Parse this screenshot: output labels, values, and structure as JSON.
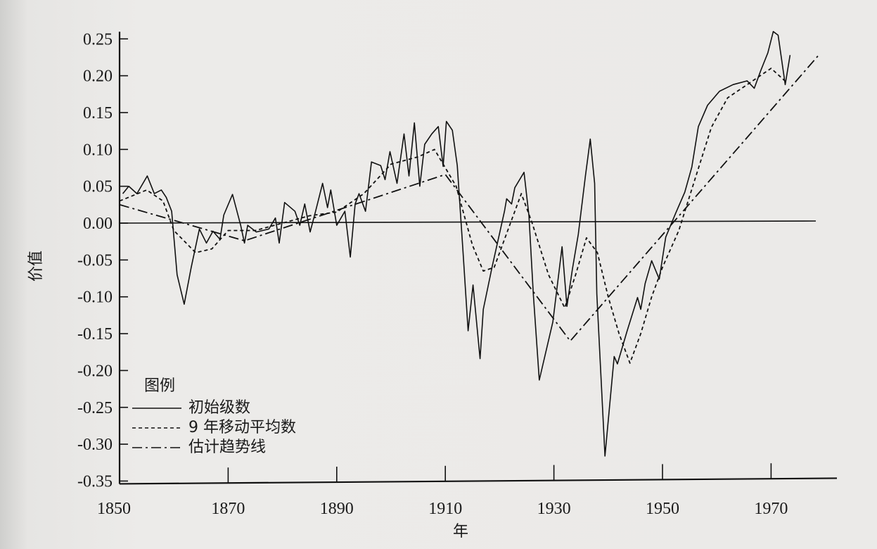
{
  "chart_data": {
    "type": "line",
    "title": "",
    "xlabel": "年",
    "ylabel": "价值",
    "xlim": [
      1850,
      1980
    ],
    "ylim": [
      -0.35,
      0.25
    ],
    "x_ticks": [
      "1850",
      "1870",
      "1890",
      "1910",
      "1930",
      "1950",
      "1970"
    ],
    "y_ticks": [
      "0.25",
      "0.20",
      "0.15",
      "0.10",
      "0.05",
      "0.00",
      "-0.05",
      "-0.10",
      "-0.15",
      "-0.20",
      "-0.25",
      "-0.30",
      "-0.35"
    ],
    "grid": false,
    "zero_line": true,
    "legend": {
      "title": "图例",
      "placement": "bottom-left",
      "entries": [
        "初始级数",
        "9 年移动平均数",
        "估计趋势线"
      ]
    },
    "series": [
      {
        "name": "初始级数",
        "style": "solid",
        "points": [
          [
            1850.6,
            0.04
          ],
          [
            1851.7,
            0.05
          ],
          [
            1853.2,
            0.04
          ],
          [
            1855.1,
            0.064
          ],
          [
            1856.4,
            0.04
          ],
          [
            1857.7,
            0.045
          ],
          [
            1858.6,
            0.035
          ],
          [
            1859.6,
            0.016
          ],
          [
            1860.6,
            -0.07
          ],
          [
            1861.9,
            -0.11
          ],
          [
            1863.2,
            -0.06
          ],
          [
            1864.7,
            -0.008
          ],
          [
            1866.0,
            -0.027
          ],
          [
            1867.2,
            -0.011
          ],
          [
            1868.5,
            -0.022
          ],
          [
            1869.2,
            0.011
          ],
          [
            1870.8,
            0.039
          ],
          [
            1872.3,
            -0.003
          ],
          [
            1873.0,
            -0.027
          ],
          [
            1873.6,
            -0.003
          ],
          [
            1875.2,
            -0.012
          ],
          [
            1877.5,
            -0.008
          ],
          [
            1878.7,
            0.007
          ],
          [
            1879.4,
            -0.027
          ],
          [
            1880.4,
            0.028
          ],
          [
            1882.3,
            0.016
          ],
          [
            1883.2,
            -0.003
          ],
          [
            1884.1,
            0.026
          ],
          [
            1885.1,
            -0.012
          ],
          [
            1886.1,
            0.016
          ],
          [
            1887.4,
            0.054
          ],
          [
            1888.3,
            0.021
          ],
          [
            1888.9,
            0.045
          ],
          [
            1890.0,
            -0.003
          ],
          [
            1891.5,
            0.016
          ],
          [
            1892.5,
            -0.046
          ],
          [
            1893.4,
            0.026
          ],
          [
            1894.1,
            0.04
          ],
          [
            1895.3,
            0.016
          ],
          [
            1896.4,
            0.083
          ],
          [
            1898.1,
            0.078
          ],
          [
            1898.9,
            0.059
          ],
          [
            1899.8,
            0.097
          ],
          [
            1901.1,
            0.054
          ],
          [
            1902.4,
            0.121
          ],
          [
            1903.3,
            0.064
          ],
          [
            1904.3,
            0.136
          ],
          [
            1905.3,
            0.05
          ],
          [
            1906.2,
            0.107
          ],
          [
            1907.5,
            0.121
          ],
          [
            1908.7,
            0.131
          ],
          [
            1909.6,
            0.077
          ],
          [
            1910.2,
            0.138
          ],
          [
            1911.3,
            0.126
          ],
          [
            1912.2,
            0.078
          ],
          [
            1913.2,
            -0.032
          ],
          [
            1914.2,
            -0.146
          ],
          [
            1915.1,
            -0.084
          ],
          [
            1916.4,
            -0.184
          ],
          [
            1917.0,
            -0.117
          ],
          [
            1918.6,
            -0.06
          ],
          [
            1920.9,
            0.016
          ],
          [
            1921.3,
            0.033
          ],
          [
            1922.2,
            0.026
          ],
          [
            1922.8,
            0.048
          ],
          [
            1924.5,
            0.069
          ],
          [
            1925.4,
            0.01
          ],
          [
            1926.2,
            -0.096
          ],
          [
            1927.3,
            -0.213
          ],
          [
            1929.8,
            -0.134
          ],
          [
            1931.5,
            -0.032
          ],
          [
            1932.4,
            -0.113
          ],
          [
            1933.4,
            -0.063
          ],
          [
            1934.5,
            -0.015
          ],
          [
            1935.8,
            0.064
          ],
          [
            1936.7,
            0.114
          ],
          [
            1937.5,
            0.054
          ],
          [
            1937.9,
            -0.096
          ],
          [
            1939.4,
            -0.316
          ],
          [
            1941.1,
            -0.181
          ],
          [
            1941.7,
            -0.191
          ],
          [
            1943.5,
            -0.146
          ],
          [
            1944.3,
            -0.127
          ],
          [
            1945.4,
            -0.101
          ],
          [
            1946.0,
            -0.117
          ],
          [
            1946.8,
            -0.082
          ],
          [
            1948.0,
            -0.051
          ],
          [
            1949.4,
            -0.076
          ],
          [
            1950.6,
            -0.019
          ],
          [
            1952.4,
            0.013
          ],
          [
            1954.1,
            0.042
          ],
          [
            1955.4,
            0.076
          ],
          [
            1956.6,
            0.131
          ],
          [
            1958.3,
            0.16
          ],
          [
            1960.5,
            0.179
          ],
          [
            1963.0,
            0.188
          ],
          [
            1965.6,
            0.193
          ],
          [
            1966.9,
            0.183
          ],
          [
            1968.1,
            0.207
          ],
          [
            1969.4,
            0.231
          ],
          [
            1970.4,
            0.26
          ],
          [
            1971.3,
            0.255
          ],
          [
            1972.6,
            0.188
          ],
          [
            1973.5,
            0.228
          ]
        ]
      },
      {
        "name": "9 年移动平均数",
        "style": "dashed",
        "points": [
          [
            1850,
            0.03
          ],
          [
            1855,
            0.045
          ],
          [
            1858,
            0.03
          ],
          [
            1860,
            -0.01
          ],
          [
            1864,
            -0.04
          ],
          [
            1867,
            -0.035
          ],
          [
            1870,
            -0.01
          ],
          [
            1875,
            -0.01
          ],
          [
            1880,
            0.0
          ],
          [
            1885,
            0.01
          ],
          [
            1890,
            0.015
          ],
          [
            1895,
            0.04
          ],
          [
            1900,
            0.08
          ],
          [
            1905,
            0.09
          ],
          [
            1908,
            0.1
          ],
          [
            1912,
            0.05
          ],
          [
            1915,
            -0.03
          ],
          [
            1917,
            -0.065
          ],
          [
            1919,
            -0.06
          ],
          [
            1922,
            0.0
          ],
          [
            1924,
            0.04
          ],
          [
            1926,
            0.0
          ],
          [
            1929,
            -0.07
          ],
          [
            1932,
            -0.115
          ],
          [
            1934,
            -0.07
          ],
          [
            1936,
            -0.02
          ],
          [
            1938,
            -0.04
          ],
          [
            1940,
            -0.1
          ],
          [
            1942,
            -0.15
          ],
          [
            1944,
            -0.19
          ],
          [
            1946,
            -0.15
          ],
          [
            1948,
            -0.1
          ],
          [
            1950,
            -0.06
          ],
          [
            1953,
            -0.01
          ],
          [
            1956,
            0.06
          ],
          [
            1959,
            0.13
          ],
          [
            1962,
            0.17
          ],
          [
            1966,
            0.19
          ],
          [
            1970,
            0.21
          ],
          [
            1973,
            0.19
          ]
        ]
      },
      {
        "name": "估计趋势线",
        "style": "dash-dot",
        "points": [
          [
            1850,
            0.025
          ],
          [
            1873,
            -0.024
          ],
          [
            1910,
            0.066
          ],
          [
            1933,
            -0.16
          ],
          [
            1979,
            0.23
          ]
        ]
      }
    ]
  }
}
